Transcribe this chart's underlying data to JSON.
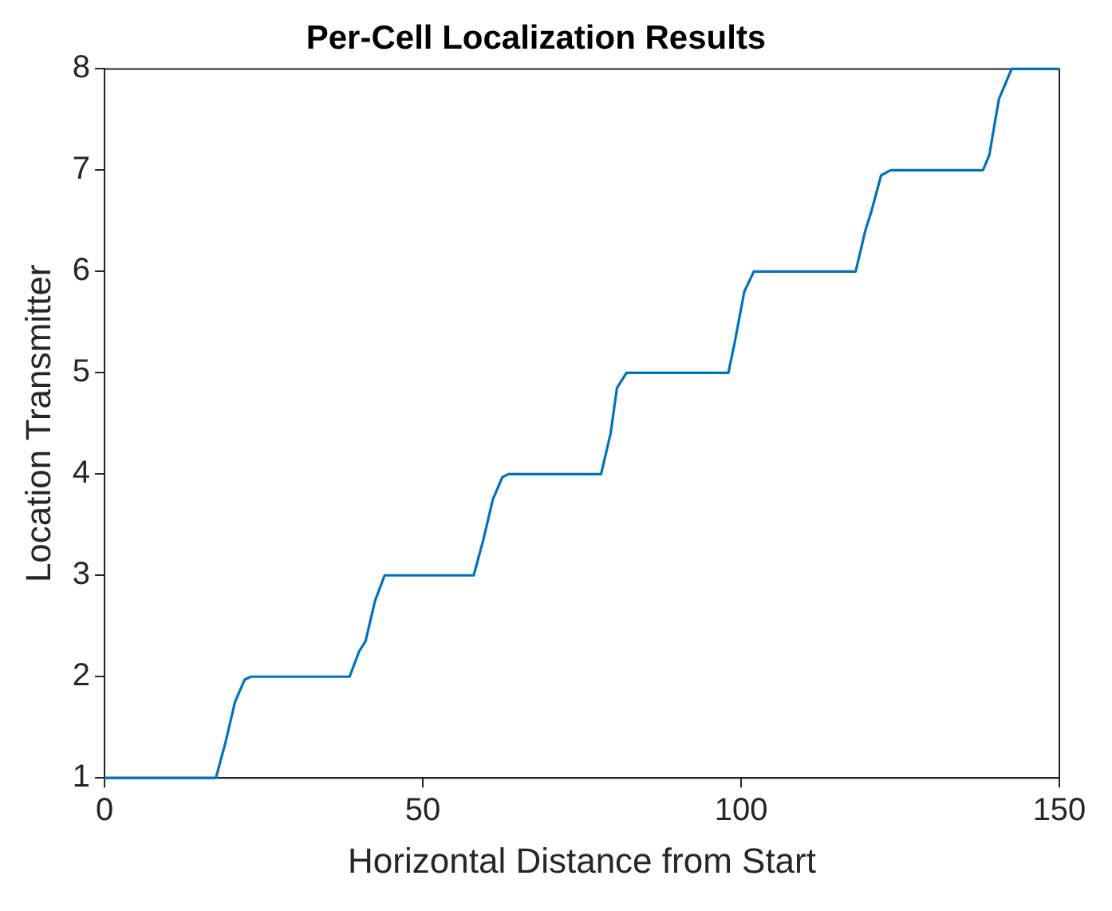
{
  "chart_data": {
    "type": "line",
    "title": "Per-Cell Localization Results",
    "xlabel": "Horizontal Distance from Start",
    "ylabel": "Location Transmitter",
    "x": [
      0,
      17.5,
      19,
      20.5,
      22,
      23,
      38.5,
      40,
      41,
      42.5,
      44,
      58,
      59.5,
      61,
      62.5,
      63.5,
      78,
      79.5,
      80.5,
      82,
      98,
      99,
      100.5,
      102,
      118,
      119.5,
      120.5,
      122,
      123.5,
      138,
      139,
      140.5,
      142.5,
      150
    ],
    "series": [
      {
        "color": "#0072bd",
        "values": [
          1,
          1,
          1.35,
          1.75,
          1.97,
          2,
          2,
          2.25,
          2.35,
          2.75,
          3,
          3,
          3.35,
          3.75,
          3.97,
          4,
          4,
          4.4,
          4.85,
          5,
          5,
          5.3,
          5.8,
          6,
          6,
          6.4,
          6.6,
          6.95,
          7,
          7,
          7.15,
          7.7,
          8,
          8
        ]
      }
    ],
    "xlim": [
      0,
      150
    ],
    "xticks": [
      0,
      50,
      100,
      150
    ],
    "ylim": [
      1,
      8
    ],
    "yticks": [
      1,
      2,
      3,
      4,
      5,
      6,
      7,
      8
    ],
    "grid": false,
    "legend": false,
    "marker": "none",
    "line_style": "solid"
  }
}
